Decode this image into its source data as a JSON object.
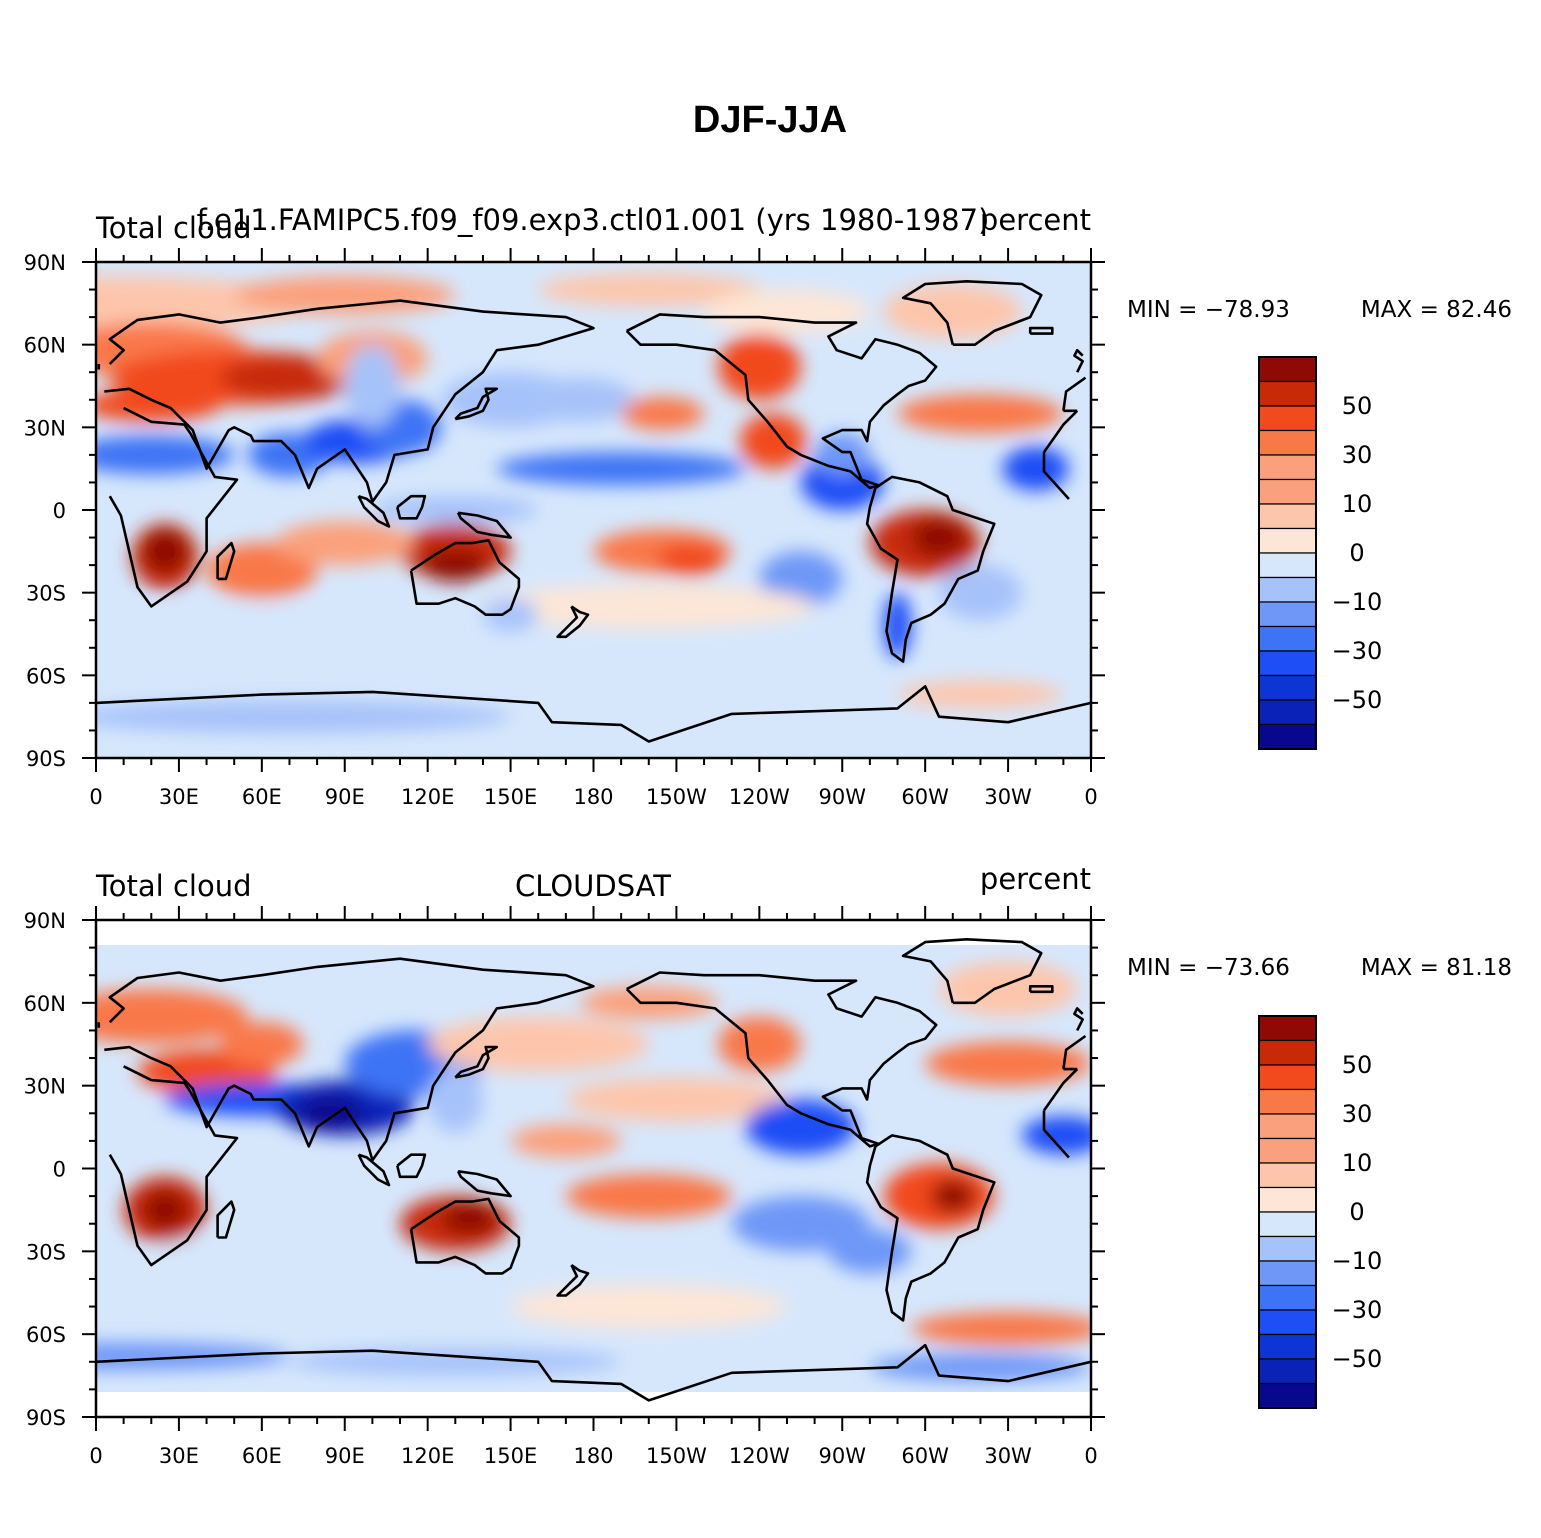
{
  "figure_title": "DJF-JJA",
  "palette": [
    "#08088f",
    "#0a22b8",
    "#0d35d6",
    "#1e4ef5",
    "#3d73f5",
    "#6e97f7",
    "#a6c2fa",
    "#d6e7fc",
    "#fde6d6",
    "#fdc6ac",
    "#fba07c",
    "#f97848",
    "#f24a1c",
    "#c82a08",
    "#8f0a04"
  ],
  "colorbar_labels": [
    "50",
    "30",
    "10",
    "0",
    "−10",
    "−30",
    "−50"
  ],
  "xticks": [
    "0",
    "30E",
    "60E",
    "90E",
    "120E",
    "150E",
    "180",
    "150W",
    "120W",
    "90W",
    "60W",
    "30W",
    "0"
  ],
  "yticks": [
    "90N",
    "60N",
    "30N",
    "0",
    "30S",
    "60S",
    "90S"
  ],
  "panels": [
    {
      "left": "Total cloud",
      "center": "f.e11.FAMIPC5.f09_f09.exp3.ctl01.001 (yrs 1980-1987)",
      "right": "percent",
      "min_label": "MIN = −78.93",
      "max_label": "MAX =  82.46"
    },
    {
      "left": "Total cloud",
      "center": "CLOUDSAT",
      "right": "percent",
      "min_label": "MIN = −73.66",
      "max_label": "MAX =  81.18"
    }
  ]
}
